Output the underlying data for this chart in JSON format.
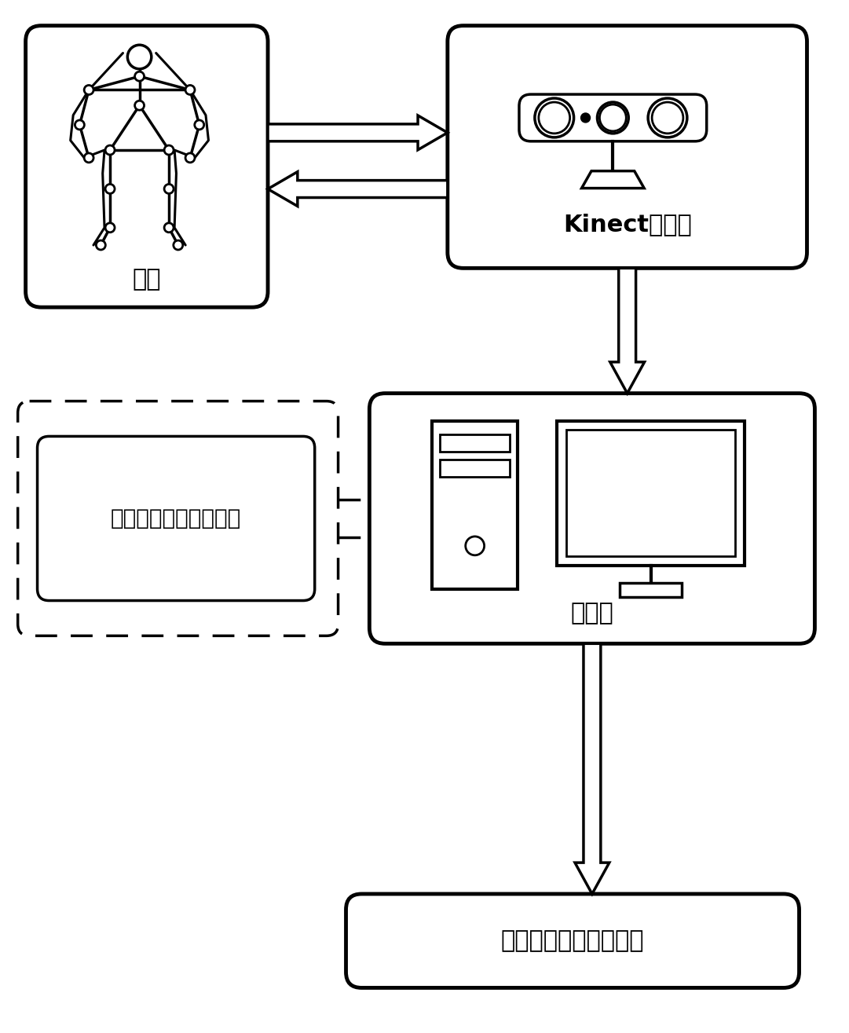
{
  "bg_color": "#ffffff",
  "line_color": "#000000",
  "box1_label": "用户",
  "box2_label": "Kinect传感器",
  "box3_label": "计算机",
  "box4_label": "人体脊柱运动预测程序",
  "box5_label": "脊柱运动预测交互界面"
}
